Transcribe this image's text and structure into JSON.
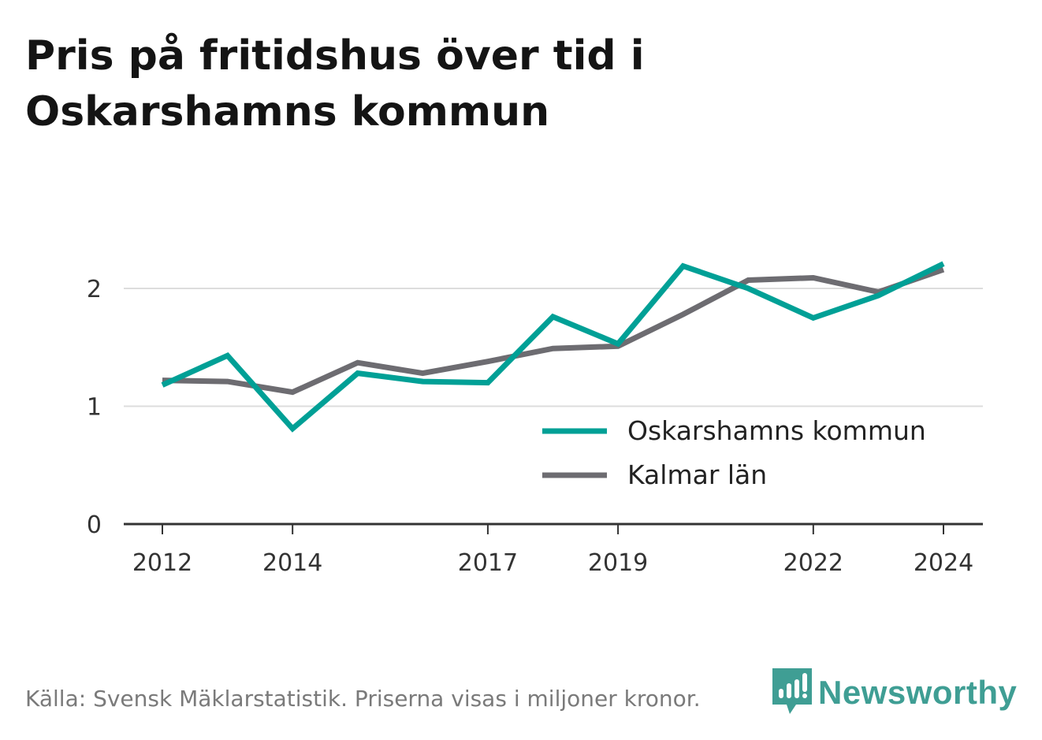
{
  "title_lines": [
    "Pris på fritidshus över tid i",
    "Oskarshamns kommun"
  ],
  "source": "Källa: Svensk Mäklarstatistik. Priserna visas i miljoner kronor.",
  "brand": {
    "name": "Newsworthy",
    "icon": "newsworthy-logo-icon",
    "color": "#3f9e94"
  },
  "chart_data": {
    "type": "line",
    "x": [
      2012,
      2013,
      2014,
      2015,
      2016,
      2017,
      2018,
      2019,
      2020,
      2021,
      2022,
      2023,
      2024
    ],
    "x_tick_labels": [
      "2012",
      "2014",
      "2017",
      "2019",
      "2022",
      "2024"
    ],
    "y_ticks": [
      0,
      1,
      2
    ],
    "ylim": [
      0,
      2.4
    ],
    "grid": "horizontal",
    "legend_position": "bottom-right",
    "series": [
      {
        "name": "Oskarshamns kommun",
        "color": "#00a096",
        "values": [
          1.18,
          1.43,
          0.81,
          1.28,
          1.21,
          1.2,
          1.76,
          1.53,
          2.19,
          2.0,
          1.75,
          1.94,
          2.21
        ]
      },
      {
        "name": "Kalmar län",
        "color": "#6d6c71",
        "values": [
          1.22,
          1.21,
          1.12,
          1.37,
          1.28,
          1.38,
          1.49,
          1.51,
          1.78,
          2.07,
          2.09,
          1.97,
          2.16
        ]
      }
    ]
  }
}
